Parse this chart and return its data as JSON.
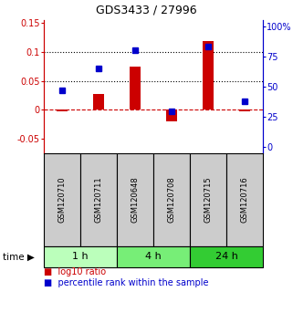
{
  "title": "GDS3433 / 27996",
  "samples": [
    "GSM120710",
    "GSM120711",
    "GSM120648",
    "GSM120708",
    "GSM120715",
    "GSM120716"
  ],
  "log10_ratio": [
    -0.002,
    0.028,
    0.075,
    -0.02,
    0.118,
    -0.003
  ],
  "percentile_rank": [
    47,
    65,
    80,
    30,
    83,
    38
  ],
  "groups": [
    {
      "label": "1 h",
      "samples": [
        0,
        1
      ],
      "color": "#bbffbb"
    },
    {
      "label": "4 h",
      "samples": [
        2,
        3
      ],
      "color": "#77ee77"
    },
    {
      "label": "24 h",
      "samples": [
        4,
        5
      ],
      "color": "#33cc33"
    }
  ],
  "bar_color": "#cc0000",
  "dot_color": "#0000cc",
  "left_ylim": [
    -0.075,
    0.155
  ],
  "right_ylim": [
    -5.0,
    105.0
  ],
  "left_yticks": [
    -0.05,
    0.0,
    0.05,
    0.1,
    0.15
  ],
  "right_yticks": [
    0,
    25,
    50,
    75,
    100
  ],
  "hlines": [
    0.0,
    0.05,
    0.1
  ],
  "hline_styles": [
    "--",
    ":",
    ":"
  ],
  "hline_colors": [
    "#cc0000",
    "#000000",
    "#000000"
  ],
  "bg_color": "#ffffff",
  "plot_bg": "#ffffff",
  "label_area_color": "#cccccc",
  "legend_log10_color": "#cc0000",
  "legend_pct_color": "#0000cc",
  "title_fontsize": 9,
  "tick_fontsize": 7,
  "bar_width": 0.3
}
